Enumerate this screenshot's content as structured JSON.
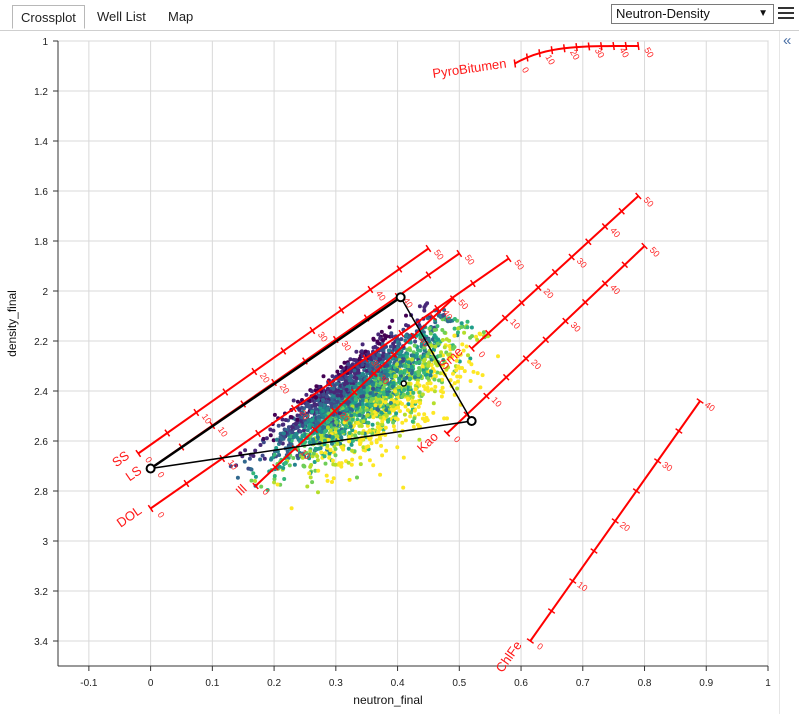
{
  "tabs": [
    {
      "label": "Crossplot",
      "active": true
    },
    {
      "label": "Well List",
      "active": false
    },
    {
      "label": "Map",
      "active": false
    }
  ],
  "plot_type_select": {
    "value": "Neutron-Density"
  },
  "icons": {
    "menu": "hamburger-menu-icon",
    "collapse": "double-chevron-left-icon",
    "dropdown": "dropdown-arrow-icon"
  },
  "colors": {
    "mineral_line": "#ff0000",
    "triangle": "#000000",
    "grid": "#d9d9d9",
    "scatter_palette": "viridis"
  },
  "chart_data": {
    "type": "scatter",
    "xlabel": "neutron_final",
    "ylabel": "density_final",
    "xlim": [
      -0.15,
      1.0
    ],
    "ylim": [
      3.5,
      1.0
    ],
    "y_inverted": true,
    "grid": true,
    "xticks": [
      "-0.1",
      "0",
      "0.1",
      "0.2",
      "0.3",
      "0.4",
      "0.5",
      "0.6",
      "0.7",
      "0.8",
      "0.9",
      "1"
    ],
    "yticks": [
      "1",
      "1.2",
      "1.4",
      "1.6",
      "1.8",
      "2",
      "2.2",
      "2.4",
      "2.6",
      "2.8",
      "3",
      "3.2",
      "3.4"
    ],
    "mineral_lines": [
      {
        "name": "SS",
        "x": [
          -0.02,
          0.45
        ],
        "y": [
          2.65,
          1.83
        ],
        "tick_labels": [
          "0",
          "10",
          "20",
          "30",
          "40",
          "50"
        ]
      },
      {
        "name": "LS",
        "x": [
          0.0,
          0.5
        ],
        "y": [
          2.71,
          1.85
        ],
        "tick_labels": [
          "0",
          "10",
          "20",
          "30",
          "40",
          "50"
        ]
      },
      {
        "name": "DOL",
        "x": [
          0.0,
          0.58
        ],
        "y": [
          2.87,
          1.87
        ],
        "tick_labels": [
          "0",
          "10",
          "20",
          "30",
          "40",
          "50"
        ]
      },
      {
        "name": "Ill",
        "x": [
          0.17,
          0.49
        ],
        "y": [
          2.78,
          2.03
        ],
        "tick_labels": [
          "0",
          "10",
          "20",
          "30",
          "40",
          "50"
        ]
      },
      {
        "name": "Sme",
        "x": [
          0.52,
          0.79
        ],
        "y": [
          2.23,
          1.62
        ],
        "tick_labels": [
          "0",
          "10",
          "20",
          "30",
          "40",
          "50"
        ]
      },
      {
        "name": "Kao",
        "x": [
          0.48,
          0.8
        ],
        "y": [
          2.57,
          1.82
        ],
        "tick_labels": [
          "0",
          "10",
          "20",
          "30",
          "40",
          "50"
        ]
      },
      {
        "name": "ChlFe",
        "x": [
          0.615,
          0.89
        ],
        "y": [
          3.4,
          2.44
        ],
        "tick_labels": [
          "0",
          "10",
          "20",
          "30",
          "40"
        ]
      },
      {
        "name": "PyroBitumen",
        "x": [
          0.59,
          0.79
        ],
        "y": [
          1.09,
          1.02
        ],
        "tick_labels": [
          "0",
          "10",
          "20",
          "30",
          "40",
          "50"
        ]
      }
    ],
    "triangle": [
      {
        "x": 0.0,
        "y": 2.71
      },
      {
        "x": 0.405,
        "y": 2.025
      },
      {
        "x": 0.52,
        "y": 2.52
      }
    ],
    "triangle_midpoint": {
      "x": 0.41,
      "y": 2.37
    },
    "scatter_cloud": {
      "count": 2600,
      "core_line_start": {
        "x": 0.13,
        "y": 2.66
      },
      "core_line_end": {
        "x": 0.42,
        "y": 2.07
      },
      "color_by": "shale fraction (viridis)"
    }
  }
}
